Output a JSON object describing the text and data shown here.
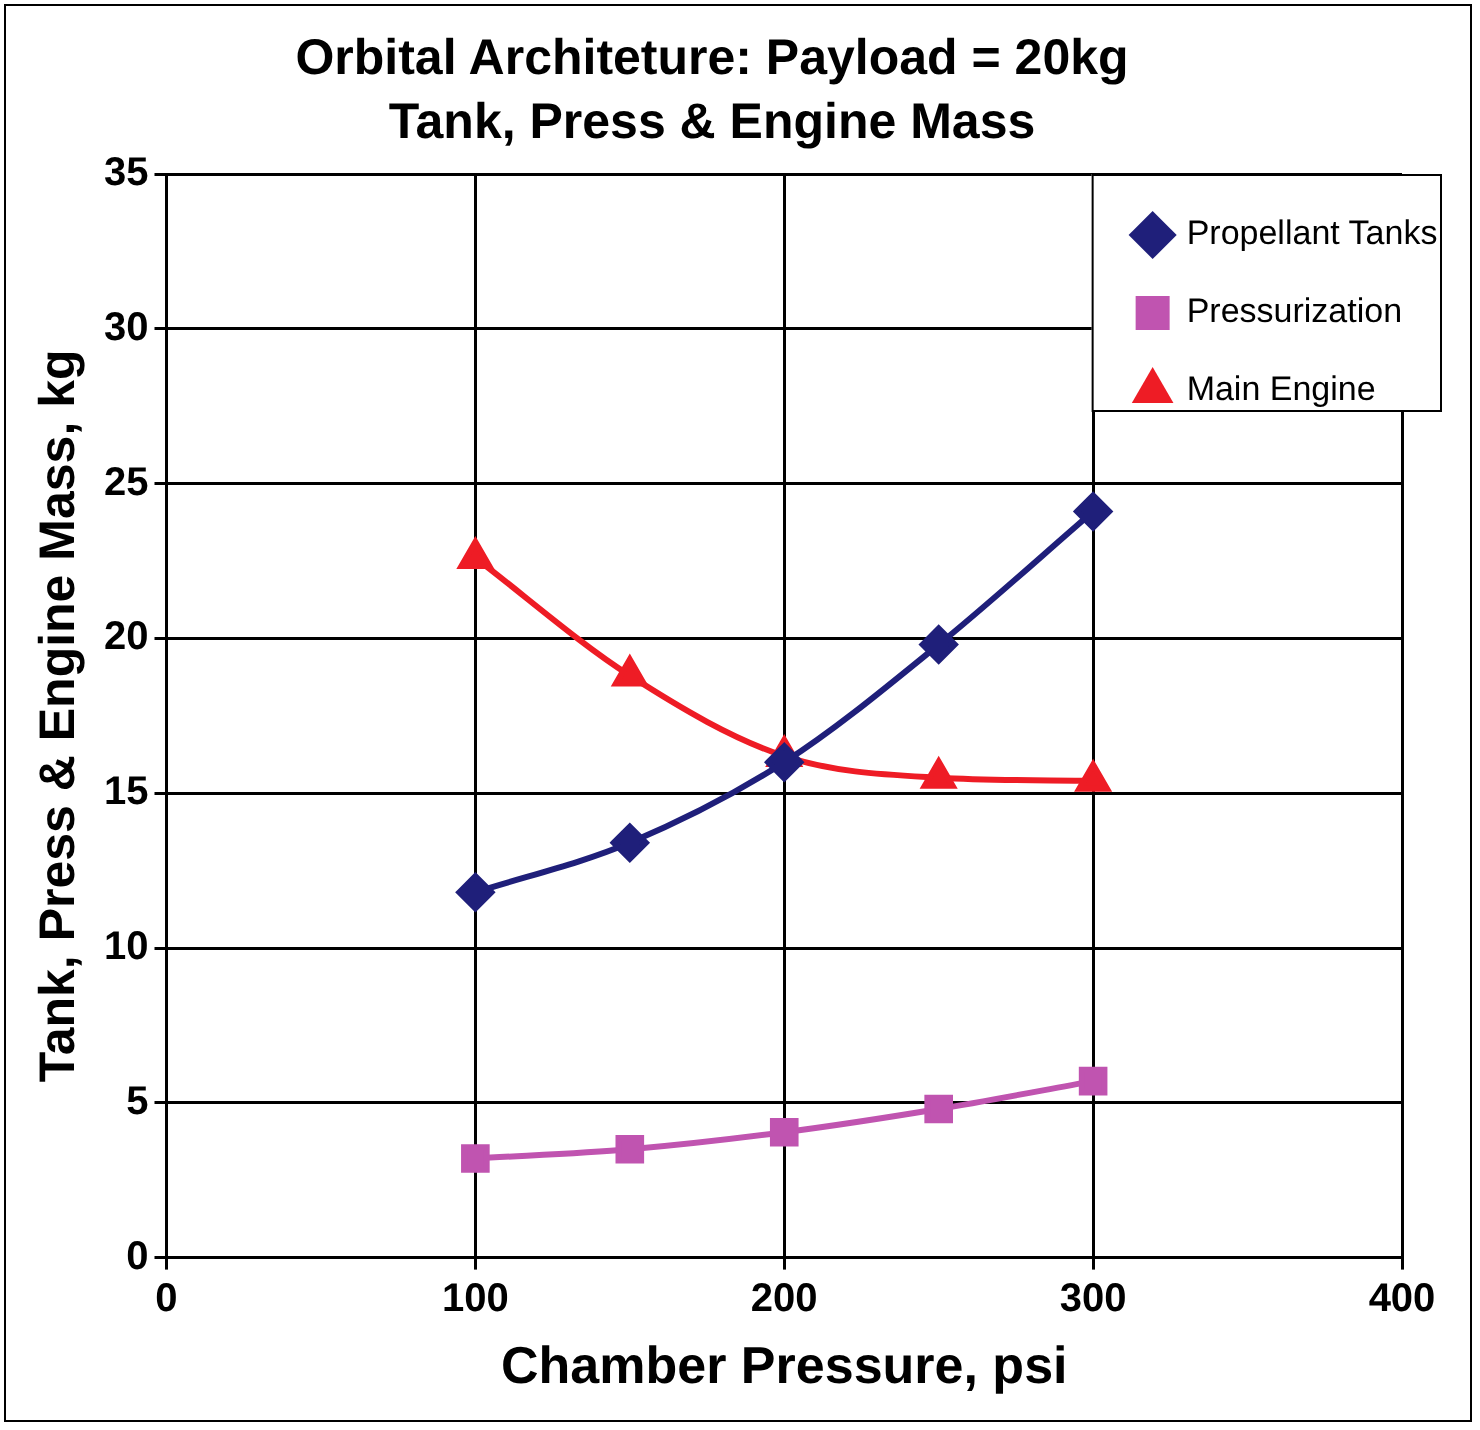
{
  "chart_data": {
    "type": "line",
    "title": "Orbital Architeture: Payload = 20kg",
    "subtitle": "Tank, Press & Engine Mass",
    "xlabel": "Chamber Pressure, psi",
    "ylabel": "Tank, Press & Engine Mass, kg",
    "x": [
      100,
      150,
      200,
      250,
      300
    ],
    "series": [
      {
        "name": "Propellant Tanks",
        "color": "#1f1f7a",
        "marker": "diamond",
        "values": [
          11.8,
          13.4,
          16.0,
          19.8,
          24.1
        ]
      },
      {
        "name": "Pressurization",
        "color": "#c054b0",
        "marker": "square",
        "values": [
          3.2,
          3.5,
          4.05,
          4.8,
          5.7
        ]
      },
      {
        "name": "Main Engine",
        "color": "#ee1c25",
        "marker": "triangle",
        "values": [
          22.6,
          18.8,
          16.2,
          15.5,
          15.4
        ]
      }
    ],
    "xlim": [
      0,
      400
    ],
    "xticks": [
      0,
      100,
      200,
      300,
      400
    ],
    "ylim": [
      0,
      35
    ],
    "yticks": [
      0,
      5,
      10,
      15,
      20,
      25,
      30,
      35
    ],
    "grid": true,
    "legend": "top right"
  }
}
